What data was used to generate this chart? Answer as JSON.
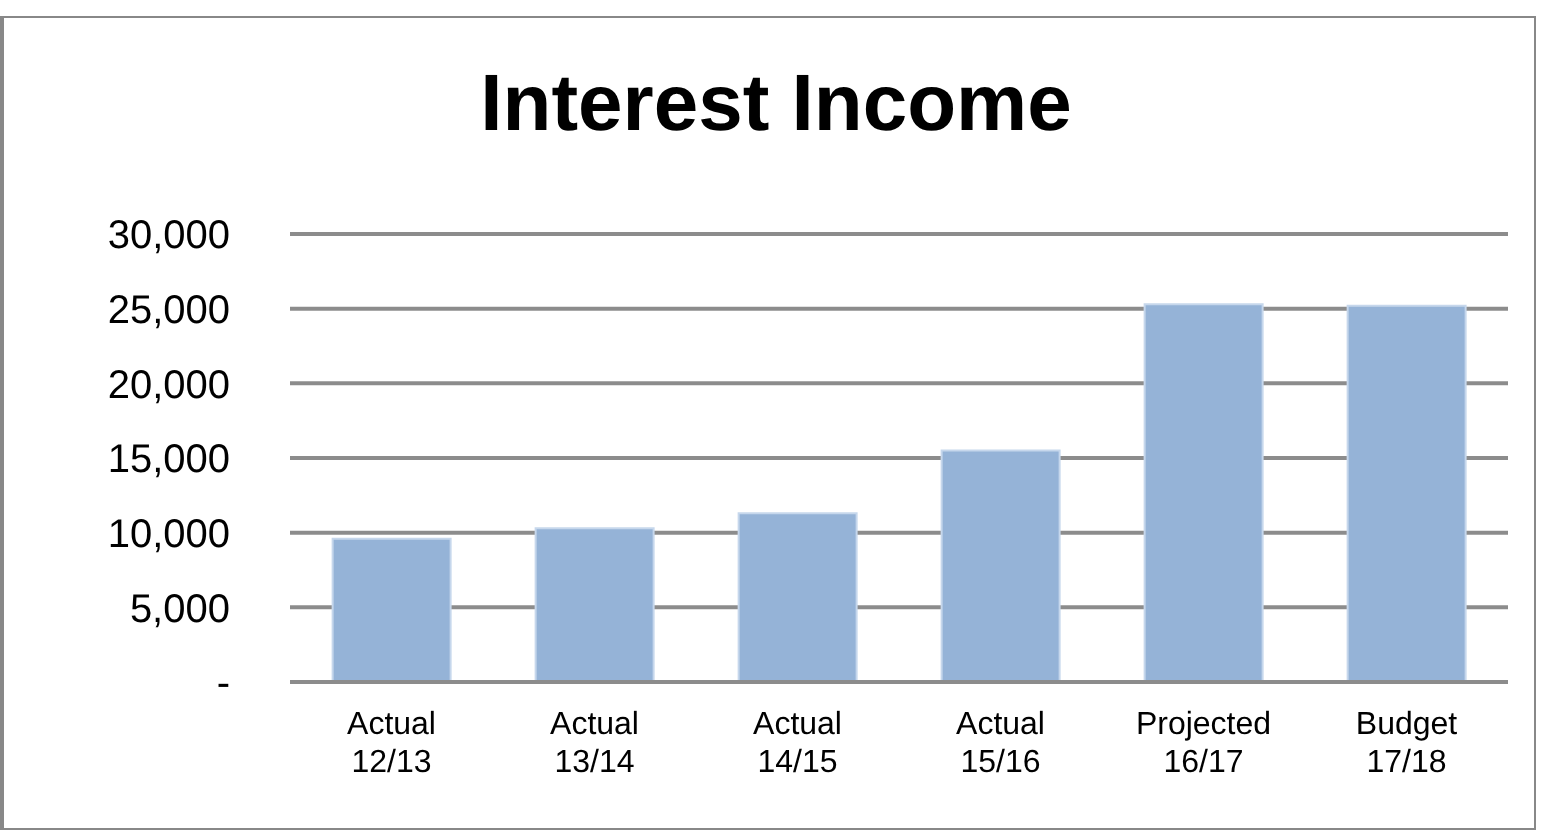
{
  "chart_data": {
    "type": "bar",
    "title": "Interest Income",
    "categories": [
      "Actual 12/13",
      "Actual 13/14",
      "Actual 14/15",
      "Actual 15/16",
      "Projected 16/17",
      "Budget 17/18"
    ],
    "values": [
      9600,
      10300,
      11300,
      15500,
      25300,
      25200
    ],
    "color": "#95b3d7",
    "ylim": [
      0,
      30000
    ],
    "yticks": [
      {
        "value": 0,
        "label": "-"
      },
      {
        "value": 5000,
        "label": "5,000"
      },
      {
        "value": 10000,
        "label": "10,000"
      },
      {
        "value": 15000,
        "label": "15,000"
      },
      {
        "value": 20000,
        "label": "20,000"
      },
      {
        "value": 25000,
        "label": "25,000"
      },
      {
        "value": 30000,
        "label": "30,000"
      }
    ],
    "grid": "y"
  }
}
